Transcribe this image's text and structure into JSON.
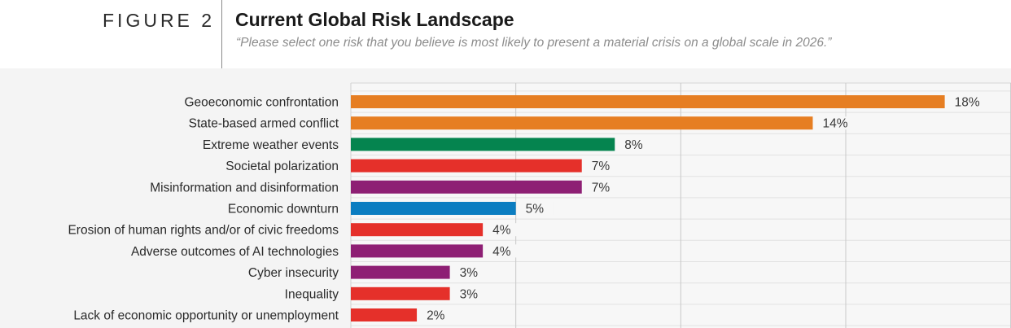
{
  "header": {
    "figure_label": "FIGURE 2",
    "title": "Current Global Risk Landscape",
    "subtitle": "“Please select one risk that you believe is most likely to present a material crisis on a global scale in 2026.”"
  },
  "colors": {
    "geopolitical": "#e67e22",
    "environmental": "#05844f",
    "societal": "#e5302a",
    "technological": "#8e1f74",
    "economic": "#0b7dc1"
  },
  "chart_data": {
    "type": "bar",
    "orientation": "horizontal",
    "title": "Current Global Risk Landscape",
    "subtitle": "“Please select one risk that you believe is most likely to present a material crisis on a global scale in 2026.”",
    "xlabel": "",
    "ylabel": "",
    "xlim": [
      0,
      20
    ],
    "gridlines_x": [
      0,
      5,
      10,
      15,
      20
    ],
    "grid": true,
    "value_suffix": "%",
    "categories": [
      "Geoeconomic confrontation",
      "State-based armed conflict",
      "Extreme weather events",
      "Societal polarization",
      "Misinformation and disinformation",
      "Economic downturn",
      "Erosion of human rights and/or of civic freedoms",
      "Adverse outcomes of AI technologies",
      "Cyber insecurity",
      "Inequality",
      "Lack of economic opportunity or unemployment"
    ],
    "values": [
      18,
      14,
      8,
      7,
      7,
      5,
      4,
      4,
      3,
      3,
      2
    ],
    "labels": [
      "18%",
      "14%",
      "8%",
      "7%",
      "7%",
      "5%",
      "4%",
      "4%",
      "3%",
      "3%",
      "2%"
    ],
    "bar_category": [
      "geopolitical",
      "geopolitical",
      "environmental",
      "societal",
      "technological",
      "economic",
      "societal",
      "technological",
      "technological",
      "societal",
      "societal"
    ]
  }
}
